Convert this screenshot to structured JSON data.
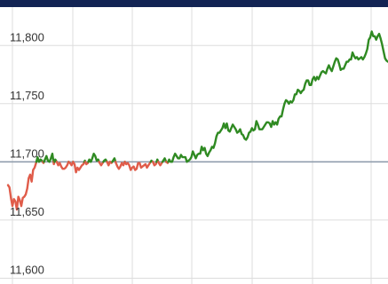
{
  "chart_data": {
    "type": "line",
    "title": "",
    "xlabel": "",
    "ylabel": "",
    "ylim": [
      11595,
      11833
    ],
    "yticks": [
      11600,
      11650,
      11700,
      11750,
      11800
    ],
    "ytick_labels": [
      "11,600",
      "11,650",
      "11,700",
      "11,750",
      "11,800"
    ],
    "baseline": 11700,
    "grid": true,
    "series": [
      {
        "values": [
          11680,
          11678,
          11669,
          11662,
          11668,
          11666,
          11659,
          11670,
          11667,
          11662,
          11669,
          11670,
          11672,
          11677,
          11686,
          11689,
          11683,
          11693,
          11695,
          11699,
          11704,
          11700,
          11702,
          11701,
          11699,
          11702,
          11705,
          11701,
          11700,
          11703,
          11707,
          11698,
          11702,
          11700,
          11697,
          11699,
          11696,
          11694,
          11694,
          11695,
          11697,
          11700,
          11699,
          11697,
          11700,
          11698,
          11691,
          11695,
          11693,
          11695,
          11697,
          11698,
          11701,
          11698,
          11699,
          11702,
          11700,
          11703,
          11707,
          11705,
          11701,
          11702,
          11699,
          11697,
          11699,
          11701,
          11702,
          11700,
          11697,
          11700,
          11699,
          11701,
          11703,
          11699,
          11696,
          11694,
          11696,
          11699,
          11697,
          11700,
          11698,
          11699,
          11697,
          11693,
          11695,
          11696,
          11693,
          11694,
          11699,
          11699,
          11695,
          11696,
          11697,
          11698,
          11695,
          11697,
          11699,
          11701,
          11700,
          11697,
          11698,
          11702,
          11699,
          11697,
          11699,
          11701,
          11703,
          11700,
          11699,
          11702,
          11700,
          11700,
          11704,
          11707,
          11705,
          11703,
          11703,
          11706,
          11704,
          11704,
          11704,
          11700,
          11701,
          11702,
          11704,
          11709,
          11706,
          11703,
          11706,
          11707,
          11707,
          11713,
          11710,
          11712,
          11707,
          11705,
          11708,
          11710,
          11713,
          11712,
          11716,
          11722,
          11725,
          11725,
          11727,
          11729,
          11733,
          11729,
          11733,
          11727,
          11726,
          11729,
          11732,
          11730,
          11728,
          11725,
          11726,
          11728,
          11724,
          11723,
          11720,
          11719,
          11721,
          11725,
          11726,
          11729,
          11727,
          11728,
          11735,
          11732,
          11728,
          11728,
          11728,
          11730,
          11732,
          11734,
          11734,
          11733,
          11730,
          11735,
          11732,
          11734,
          11732,
          11737,
          11739,
          11739,
          11745,
          11750,
          11753,
          11752,
          11750,
          11752,
          11751,
          11753,
          11758,
          11758,
          11762,
          11761,
          11759,
          11761,
          11762,
          11767,
          11770,
          11770,
          11766,
          11766,
          11771,
          11773,
          11770,
          11773,
          11771,
          11774,
          11777,
          11778,
          11777,
          11776,
          11780,
          11783,
          11780,
          11778,
          11782,
          11786,
          11789,
          11788,
          11784,
          11779,
          11780,
          11780,
          11783,
          11786,
          11786,
          11788,
          11788,
          11794,
          11791,
          11789,
          11790,
          11788,
          11789,
          11790,
          11788,
          11790,
          11793,
          11797,
          11805,
          11807,
          11812,
          11808,
          11808,
          11805,
          11808,
          11810,
          11806,
          11801,
          11795,
          11789,
          11787,
          11786
        ]
      }
    ]
  },
  "colors": {
    "header_bar": "#122353",
    "grid": "#dddddd",
    "baseline": "#8a98a9",
    "up_line": "#2f8a22",
    "down_line": "#e05c4a",
    "tick_text": "#333333"
  }
}
